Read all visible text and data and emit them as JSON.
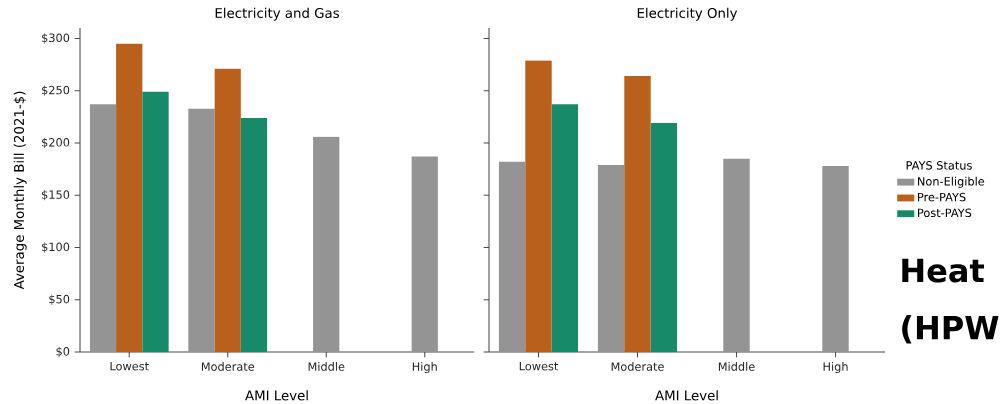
{
  "chart_data": [
    {
      "type": "bar",
      "title": "Electricity and Gas",
      "xlabel": "AMI Level",
      "ylabel": "Average Monthly Bill (2021-$)",
      "categories": [
        "Lowest",
        "Moderate",
        "Middle",
        "High"
      ],
      "series": [
        {
          "color": "#949494",
          "values": [
            237,
            233,
            206,
            187
          ]
        },
        {
          "color": "#b8601c",
          "values": [
            295,
            271,
            null,
            null
          ]
        },
        {
          "color": "#178a6a",
          "values": [
            249,
            224,
            null,
            null
          ]
        }
      ],
      "ylim": [
        0,
        310
      ],
      "yticks": [
        {
          "value": 0,
          "label": "$0"
        },
        {
          "value": 50,
          "label": "$50"
        },
        {
          "value": 100,
          "label": "$100"
        },
        {
          "value": 150,
          "label": "$150"
        },
        {
          "value": 200,
          "label": "$200"
        },
        {
          "value": 250,
          "label": "$250"
        },
        {
          "value": 300,
          "label": "$300"
        }
      ]
    },
    {
      "type": "bar",
      "title": "Electricity Only",
      "xlabel": "AMI Level",
      "legend_title": "PAYS Status",
      "legend": "right",
      "tick_labels": "x",
      "categories": [
        "Lowest",
        "Moderate",
        "Middle",
        "High"
      ],
      "series": [
        {
          "name": "Non-Eligible",
          "color": "#949494",
          "values": [
            182,
            179,
            185,
            178
          ]
        },
        {
          "name": "Pre-PAYS",
          "color": "#b8601c",
          "values": [
            279,
            264,
            null,
            null
          ]
        },
        {
          "name": "Post-PAYS",
          "color": "#178a6a",
          "values": [
            237,
            219,
            null,
            null
          ]
        }
      ],
      "ylim": [
        0,
        310
      ],
      "yticks": [
        {
          "value": 0,
          "label": null
        },
        {
          "value": 50,
          "label": null
        },
        {
          "value": 100,
          "label": null
        },
        {
          "value": 150,
          "label": null
        },
        {
          "value": 200,
          "label": null
        },
        {
          "value": 250,
          "label": null
        },
        {
          "value": 300,
          "label": null
        }
      ],
      "annotations": [
        "Heat",
        "(HPW"
      ]
    }
  ]
}
